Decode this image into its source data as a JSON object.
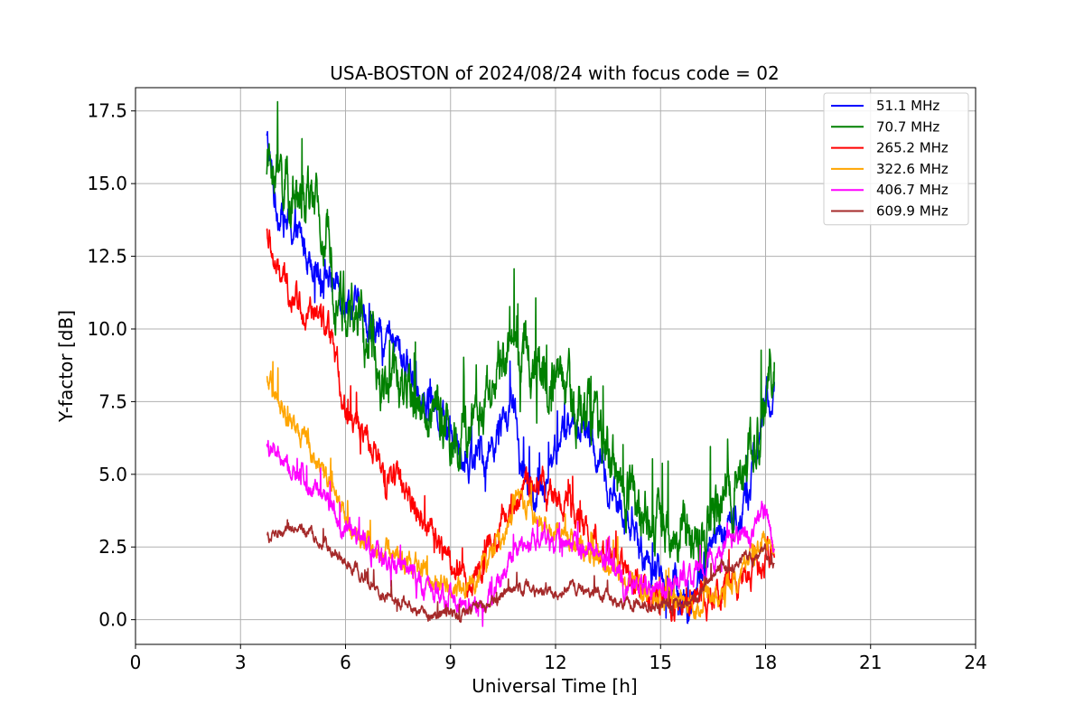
{
  "chart_data": {
    "type": "line",
    "title": "USA-BOSTON of 2024/08/24 with focus code = 02",
    "xlabel": "Universal Time [h]",
    "ylabel": "Y-factor [dB]",
    "xlim": [
      0,
      24
    ],
    "ylim": [
      -0.85,
      18.3
    ],
    "xticks": [
      0,
      3,
      6,
      9,
      12,
      15,
      18,
      21,
      24
    ],
    "xtick_labels": [
      "0",
      "3",
      "6",
      "9",
      "12",
      "15",
      "18",
      "21",
      "24"
    ],
    "yticks": [
      0.0,
      2.5,
      5.0,
      7.5,
      10.0,
      12.5,
      15.0,
      17.5
    ],
    "ytick_labels": [
      "0.0",
      "2.5",
      "5.0",
      "7.5",
      "10.0",
      "12.5",
      "15.0",
      "17.5"
    ],
    "grid": true,
    "legend_position": "top-right",
    "noise_amplitude_note": "",
    "series": [
      {
        "name": "  51.1 MHz",
        "color": "#0000ff",
        "noise": 0.7,
        "points": [
          [
            3.75,
            16.5
          ],
          [
            4.0,
            14.3
          ],
          [
            4.5,
            13.3
          ],
          [
            5.0,
            12.6
          ],
          [
            5.5,
            11.8
          ],
          [
            6.0,
            11.2
          ],
          [
            6.5,
            10.4
          ],
          [
            7.0,
            9.8
          ],
          [
            7.5,
            9.3
          ],
          [
            8.0,
            8.3
          ],
          [
            8.5,
            7.4
          ],
          [
            9.0,
            6.5
          ],
          [
            9.5,
            5.5
          ],
          [
            10.0,
            5.6
          ],
          [
            10.5,
            6.8
          ],
          [
            10.8,
            7.3
          ],
          [
            11.0,
            5.2
          ],
          [
            11.5,
            4.0
          ],
          [
            12.0,
            6.0
          ],
          [
            12.5,
            6.8
          ],
          [
            13.0,
            6.2
          ],
          [
            13.5,
            4.6
          ],
          [
            14.0,
            3.4
          ],
          [
            14.5,
            2.2
          ],
          [
            15.0,
            1.5
          ],
          [
            15.5,
            1.0
          ],
          [
            15.8,
            0.4
          ],
          [
            16.0,
            1.2
          ],
          [
            16.5,
            2.5
          ],
          [
            17.0,
            3.2
          ],
          [
            17.5,
            4.2
          ],
          [
            18.0,
            7.5
          ],
          [
            18.25,
            8.0
          ]
        ]
      },
      {
        "name": "  70.7 MHz",
        "color": "#008000",
        "noise": 1.2,
        "points": [
          [
            3.75,
            15.8
          ],
          [
            4.0,
            15.4
          ],
          [
            4.5,
            14.6
          ],
          [
            5.0,
            14.2
          ],
          [
            5.5,
            12.8
          ],
          [
            6.0,
            10.8
          ],
          [
            6.5,
            9.8
          ],
          [
            7.0,
            8.6
          ],
          [
            7.5,
            8.0
          ],
          [
            8.0,
            7.5
          ],
          [
            8.5,
            7.0
          ],
          [
            9.0,
            6.5
          ],
          [
            9.5,
            6.2
          ],
          [
            10.0,
            7.6
          ],
          [
            10.5,
            9.0
          ],
          [
            11.0,
            9.2
          ],
          [
            11.5,
            8.8
          ],
          [
            12.0,
            8.2
          ],
          [
            12.5,
            7.5
          ],
          [
            13.0,
            7.0
          ],
          [
            13.5,
            5.8
          ],
          [
            14.0,
            4.5
          ],
          [
            14.5,
            3.8
          ],
          [
            15.0,
            3.2
          ],
          [
            15.5,
            3.0
          ],
          [
            16.0,
            2.6
          ],
          [
            16.5,
            3.2
          ],
          [
            17.0,
            4.5
          ],
          [
            17.5,
            5.8
          ],
          [
            18.0,
            7.5
          ],
          [
            18.25,
            9.0
          ]
        ]
      },
      {
        "name": "265.2 MHz",
        "color": "#ff0000",
        "noise": 0.6,
        "points": [
          [
            3.75,
            13.4
          ],
          [
            4.0,
            12.0
          ],
          [
            4.5,
            11.2
          ],
          [
            5.0,
            10.6
          ],
          [
            5.5,
            9.8
          ],
          [
            5.8,
            8.5
          ],
          [
            6.0,
            7.2
          ],
          [
            6.5,
            6.2
          ],
          [
            7.0,
            5.2
          ],
          [
            7.5,
            4.8
          ],
          [
            8.0,
            4.0
          ],
          [
            8.5,
            3.0
          ],
          [
            9.0,
            2.0
          ],
          [
            9.5,
            1.3
          ],
          [
            10.0,
            2.0
          ],
          [
            10.5,
            3.5
          ],
          [
            11.0,
            4.5
          ],
          [
            11.5,
            5.0
          ],
          [
            12.0,
            4.2
          ],
          [
            12.5,
            3.6
          ],
          [
            13.0,
            3.0
          ],
          [
            13.5,
            2.2
          ],
          [
            14.0,
            1.6
          ],
          [
            14.5,
            1.0
          ],
          [
            15.0,
            0.8
          ],
          [
            15.5,
            0.6
          ],
          [
            16.0,
            0.7
          ],
          [
            16.5,
            0.8
          ],
          [
            17.0,
            1.2
          ],
          [
            17.5,
            1.6
          ],
          [
            18.0,
            2.2
          ],
          [
            18.25,
            2.0
          ]
        ]
      },
      {
        "name": "322.6 MHz",
        "color": "#ffa500",
        "noise": 0.45,
        "points": [
          [
            3.75,
            8.2
          ],
          [
            4.0,
            7.5
          ],
          [
            4.5,
            6.8
          ],
          [
            5.0,
            6.0
          ],
          [
            5.5,
            4.8
          ],
          [
            6.0,
            3.4
          ],
          [
            6.5,
            2.7
          ],
          [
            7.0,
            2.5
          ],
          [
            7.5,
            2.2
          ],
          [
            8.0,
            1.8
          ],
          [
            8.5,
            1.4
          ],
          [
            9.0,
            1.2
          ],
          [
            9.5,
            1.2
          ],
          [
            10.0,
            1.8
          ],
          [
            10.5,
            3.0
          ],
          [
            11.0,
            4.4
          ],
          [
            11.5,
            3.2
          ],
          [
            12.0,
            3.0
          ],
          [
            12.5,
            2.6
          ],
          [
            13.0,
            2.2
          ],
          [
            13.5,
            1.8
          ],
          [
            14.0,
            1.4
          ],
          [
            14.5,
            1.0
          ],
          [
            15.0,
            0.6
          ],
          [
            15.5,
            0.5
          ],
          [
            16.0,
            0.5
          ],
          [
            16.5,
            0.8
          ],
          [
            17.0,
            1.2
          ],
          [
            17.5,
            2.0
          ],
          [
            18.0,
            2.8
          ],
          [
            18.25,
            2.6
          ]
        ]
      },
      {
        "name": "406.7 MHz",
        "color": "#ff00ff",
        "noise": 0.45,
        "points": [
          [
            3.75,
            6.1
          ],
          [
            4.0,
            5.6
          ],
          [
            4.5,
            5.0
          ],
          [
            5.0,
            4.8
          ],
          [
            5.5,
            4.2
          ],
          [
            6.0,
            3.2
          ],
          [
            6.5,
            2.6
          ],
          [
            7.0,
            2.3
          ],
          [
            7.5,
            1.9
          ],
          [
            8.0,
            1.4
          ],
          [
            8.5,
            1.0
          ],
          [
            9.0,
            0.7
          ],
          [
            9.5,
            0.4
          ],
          [
            10.0,
            0.5
          ],
          [
            10.5,
            1.5
          ],
          [
            11.0,
            2.5
          ],
          [
            11.5,
            2.8
          ],
          [
            12.0,
            2.6
          ],
          [
            12.5,
            2.8
          ],
          [
            13.0,
            2.4
          ],
          [
            13.5,
            1.8
          ],
          [
            14.0,
            1.3
          ],
          [
            14.5,
            1.1
          ],
          [
            15.0,
            1.0
          ],
          [
            15.5,
            1.2
          ],
          [
            16.0,
            1.6
          ],
          [
            16.5,
            2.2
          ],
          [
            17.0,
            2.6
          ],
          [
            17.5,
            3.0
          ],
          [
            18.0,
            3.6
          ],
          [
            18.25,
            2.8
          ]
        ]
      },
      {
        "name": "609.9 MHz",
        "color": "#a52a2a",
        "noise": 0.25,
        "points": [
          [
            3.75,
            2.9
          ],
          [
            4.0,
            2.8
          ],
          [
            4.5,
            3.2
          ],
          [
            5.0,
            2.9
          ],
          [
            5.5,
            2.5
          ],
          [
            6.0,
            2.0
          ],
          [
            6.5,
            1.4
          ],
          [
            7.0,
            1.0
          ],
          [
            7.5,
            0.6
          ],
          [
            8.0,
            0.3
          ],
          [
            8.5,
            0.2
          ],
          [
            9.0,
            0.2
          ],
          [
            9.5,
            0.3
          ],
          [
            10.0,
            0.5
          ],
          [
            10.5,
            0.9
          ],
          [
            11.0,
            1.2
          ],
          [
            11.5,
            1.0
          ],
          [
            12.0,
            0.9
          ],
          [
            12.5,
            1.1
          ],
          [
            13.0,
            1.0
          ],
          [
            13.5,
            0.8
          ],
          [
            14.0,
            0.6
          ],
          [
            14.5,
            0.4
          ],
          [
            15.0,
            0.5
          ],
          [
            15.5,
            0.6
          ],
          [
            16.0,
            0.7
          ],
          [
            16.5,
            1.6
          ],
          [
            17.0,
            1.8
          ],
          [
            17.5,
            2.0
          ],
          [
            18.0,
            2.4
          ],
          [
            18.25,
            1.9
          ]
        ]
      }
    ]
  }
}
